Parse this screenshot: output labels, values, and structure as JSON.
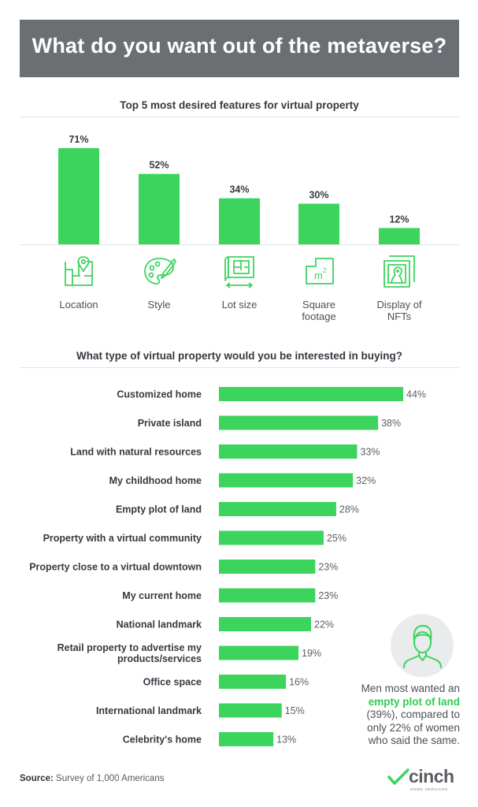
{
  "header": {
    "title": "What do you want out of the metaverse?"
  },
  "colors": {
    "bar": "#3dd45e",
    "banner": "#6b6f73",
    "icon": "#3dd45e",
    "highlight": "#2fcc4e"
  },
  "chart_data": [
    {
      "type": "bar",
      "title": "Top 5 most desired features for virtual property",
      "categories": [
        "Location",
        "Style",
        "Lot size",
        "Square footage",
        "Display of NFTs"
      ],
      "category_lines": [
        [
          "Location"
        ],
        [
          "Style"
        ],
        [
          "Lot size"
        ],
        [
          "Square",
          "footage"
        ],
        [
          "Display of",
          "NFTs"
        ]
      ],
      "icons": [
        "map-pin-icon",
        "paint-palette-icon",
        "blueprint-icon",
        "square-meter-icon",
        "nft-frame-icon"
      ],
      "values": [
        71,
        52,
        34,
        30,
        12
      ],
      "value_labels": [
        "71%",
        "52%",
        "34%",
        "30%",
        "12%"
      ],
      "ylim": [
        0,
        80
      ],
      "grid": false
    },
    {
      "type": "bar",
      "orientation": "horizontal",
      "title": "What type of virtual property would you be interested in buying?",
      "categories": [
        "Customized home",
        "Private island",
        "Land with natural resources",
        "My childhood home",
        "Empty plot of land",
        "Property with a virtual community",
        "Property close to a virtual downtown",
        "My current home",
        "National landmark",
        "Retail property to advertise my products/services",
        "Office space",
        "International landmark",
        "Celebrity's home"
      ],
      "category_lines": [
        [
          "Customized home"
        ],
        [
          "Private island"
        ],
        [
          "Land with natural resources"
        ],
        [
          "My childhood home"
        ],
        [
          "Empty plot of land"
        ],
        [
          "Property with a virtual community"
        ],
        [
          "Property close to a virtual downtown"
        ],
        [
          "My current home"
        ],
        [
          "National landmark"
        ],
        [
          "Retail property to advertise my",
          "products/services"
        ],
        [
          "Office space"
        ],
        [
          "International landmark"
        ],
        [
          "Celebrity's home"
        ]
      ],
      "values": [
        44,
        38,
        33,
        32,
        28,
        25,
        23,
        23,
        22,
        19,
        16,
        15,
        13
      ],
      "value_labels": [
        "44%",
        "38%",
        "33%",
        "32%",
        "28%",
        "25%",
        "23%",
        "23%",
        "22%",
        "19%",
        "16%",
        "15%",
        "13%"
      ],
      "xlim": [
        0,
        44
      ],
      "grid": false
    }
  ],
  "callout": {
    "icon": "man-avatar-icon",
    "line1": "Men most wanted an",
    "highlight": "empty plot of land",
    "line3": "(39%), compared to",
    "line4": "only 22% of women",
    "line5": "who said the same."
  },
  "footer": {
    "source_label": "Source:",
    "source_text": "Survey of 1,000 Americans",
    "logo_text": "cinch",
    "logo_subtext": "HOME SERVICES"
  }
}
